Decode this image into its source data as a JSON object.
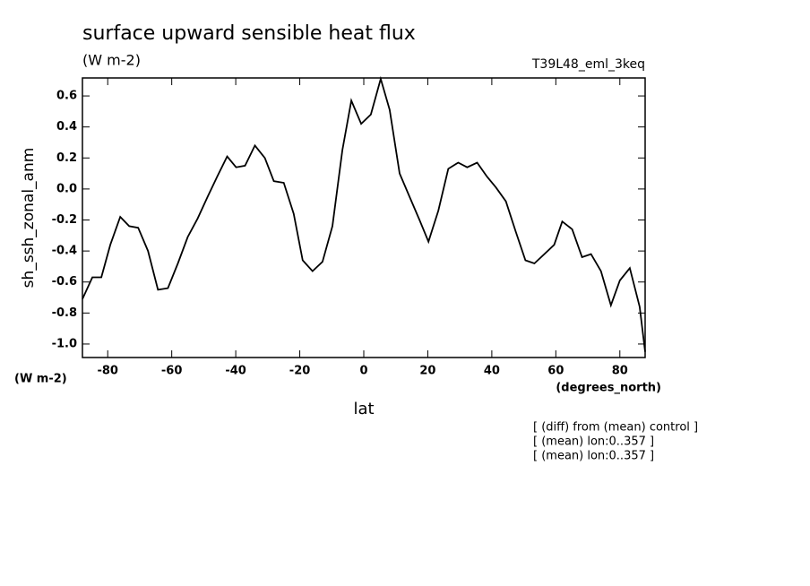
{
  "chart_data": {
    "type": "line",
    "title": "surface upward sensible heat flux",
    "subtitle": "(W m-2)",
    "annotation": "T39L48_eml_3keq",
    "ylabel": "sh_ssh_zonal_anm",
    "y_units": "(W m-2)",
    "x_units": "(degrees_north)",
    "xlabel": "lat",
    "notes": [
      "[ (diff) from (mean) control ]",
      "[ (mean) lon:0..357 ]",
      "[ (mean) lon:0..357 ]"
    ],
    "x": [
      -87.9,
      -84.8,
      -82.0,
      -79.2,
      -76.1,
      -73.3,
      -70.5,
      -67.4,
      -64.3,
      -61.2,
      -58.1,
      -55.0,
      -51.9,
      -48.8,
      -45.8,
      -42.7,
      -39.9,
      -37.1,
      -34.0,
      -30.9,
      -28.1,
      -25.0,
      -21.9,
      -19.1,
      -16.0,
      -12.9,
      -9.8,
      -6.7,
      -3.9,
      -0.8,
      2.2,
      5.3,
      8.1,
      11.2,
      14.3,
      17.4,
      20.2,
      23.3,
      26.4,
      29.5,
      32.3,
      35.4,
      38.5,
      41.3,
      44.4,
      47.4,
      50.5,
      53.3,
      56.4,
      59.5,
      62.0,
      65.1,
      68.2,
      71.0,
      74.1,
      77.2,
      80.0,
      83.1,
      86.2,
      87.9
    ],
    "series": [
      {
        "color": "#000000",
        "values": [
          -0.71,
          -0.57,
          -0.57,
          -0.36,
          -0.18,
          -0.24,
          -0.25,
          -0.4,
          -0.65,
          -0.64,
          -0.48,
          -0.31,
          -0.19,
          -0.05,
          0.08,
          0.21,
          0.14,
          0.15,
          0.28,
          0.2,
          0.05,
          0.04,
          -0.16,
          -0.46,
          -0.53,
          -0.47,
          -0.24,
          0.25,
          0.57,
          0.42,
          0.48,
          0.71,
          0.51,
          0.1,
          -0.05,
          -0.2,
          -0.34,
          -0.14,
          0.13,
          0.17,
          0.14,
          0.17,
          0.08,
          0.01,
          -0.08,
          -0.27,
          -0.46,
          -0.48,
          -0.42,
          -0.36,
          -0.21,
          -0.26,
          -0.44,
          -0.42,
          -0.53,
          -0.75,
          -0.59,
          -0.51,
          -0.76,
          -1.05
        ]
      }
    ],
    "xlim": [
      -87.9,
      87.9
    ],
    "ylim": [
      -1.087,
      0.716
    ],
    "xticks": [
      -80,
      -60,
      -40,
      -20,
      0,
      20,
      40,
      60,
      80
    ],
    "yticks": [
      0.6,
      0.4,
      0.2,
      {
        "value": 0,
        "label": "0.0"
      },
      -0.2,
      -0.4,
      -0.6,
      -0.8,
      {
        "value": -1,
        "label": "-1.0"
      }
    ],
    "grid": false
  }
}
